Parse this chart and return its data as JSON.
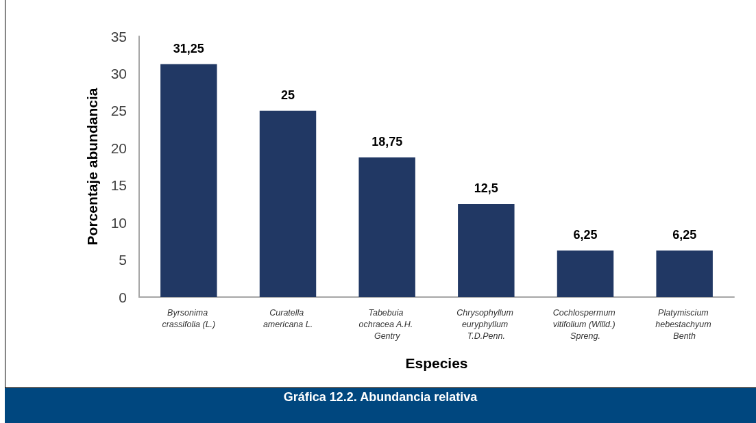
{
  "chart_data": {
    "type": "bar",
    "title": "Gráfica 12.2. Abundancia relativa",
    "xlabel": "Especies",
    "ylabel": "Porcentaje abundancia",
    "categories": [
      "Byrsonima crassifolia (L.)",
      "Curatella americana L.",
      "Tabebuia ochracea A.H. Gentry",
      "Chrysophyllum euryphyllum T.D.Penn.",
      "Cochlospermum vitifolium (Willd.) Spreng.",
      "Platymiscium hebestachyum Benth"
    ],
    "values": [
      31.25,
      25,
      18.75,
      12.5,
      6.25,
      6.25
    ],
    "color": "#213864",
    "value_labels": [
      "31,25",
      "25",
      "18,75",
      "12,5",
      "6,25",
      "6,25"
    ],
    "ylim": [
      0,
      35
    ],
    "yticks": [
      0,
      5,
      10,
      15,
      20,
      25,
      30,
      35
    ],
    "grid": false
  }
}
